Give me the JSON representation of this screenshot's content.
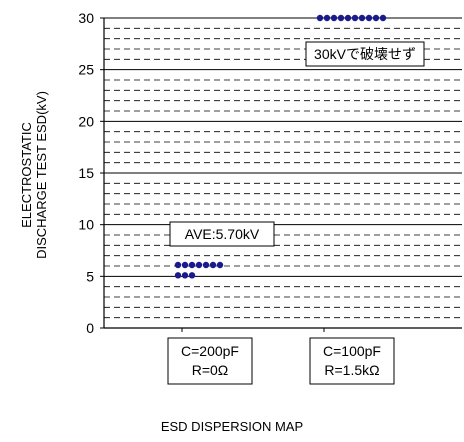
{
  "chart_data": {
    "type": "scatter",
    "title": "",
    "caption": "ESD DISPERSION MAP",
    "ylabel_lines": [
      "ELECTROSTATIC",
      "DISCHARGE TEST ESD(kV)"
    ],
    "xlabel": "",
    "ylim": [
      0,
      30
    ],
    "yticks": [
      0,
      5,
      10,
      15,
      20,
      25,
      30
    ],
    "grid": "horizontal, dashed minor lines every 1kV, solid major lines every 5kV",
    "categories": [
      {
        "lines": [
          "C=200pF",
          "R=0Ω"
        ]
      },
      {
        "lines": [
          "C=100pF",
          "R=1.5kΩ"
        ]
      }
    ],
    "series": [
      {
        "category_index": 0,
        "values": [
          6,
          6,
          6,
          6,
          6,
          6,
          6,
          5,
          5,
          5
        ],
        "color": "#1a1a8c",
        "annotation": "AVE:5.70kV"
      },
      {
        "category_index": 1,
        "values": [
          30,
          30,
          30,
          30,
          30,
          30,
          30,
          30,
          30,
          30
        ],
        "color": "#1a1a8c",
        "annotation": "30kVで破壊せず"
      }
    ]
  }
}
